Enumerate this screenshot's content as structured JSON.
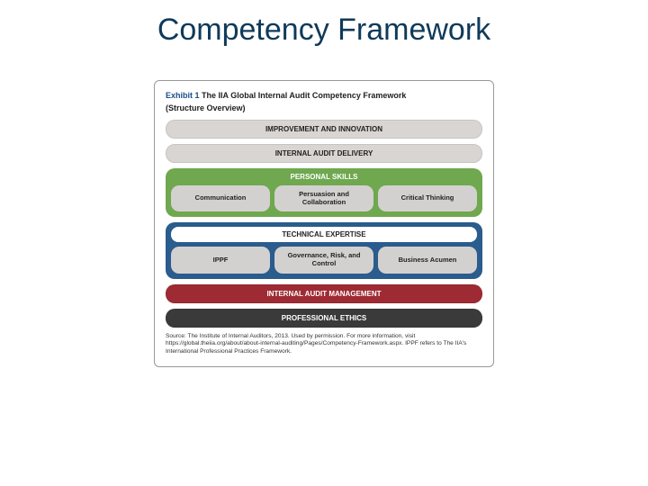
{
  "title": {
    "text": "Competency Framework",
    "color": "#0f3a5a"
  },
  "exhibit": {
    "label": "Exhibit 1",
    "heading": "The IIA Global Internal Audit Competency Framework",
    "sub": "(Structure Overview)"
  },
  "colors": {
    "gray_pill": "#d8d5d2",
    "gray_sub": "#d3d1cf",
    "green_group": "#6fa84f",
    "green_title": "#ffffff",
    "blue_group": "#2a5c8d",
    "blue_title_box": "#ffffff",
    "red_pill": "#9e2b34",
    "red_text": "#ffffff",
    "dark_pill": "#3b3a3a",
    "dark_text": "#ffffff"
  },
  "rows": {
    "r1": "IMPROVEMENT AND INNOVATION",
    "r2": "INTERNAL AUDIT DELIVERY",
    "green": {
      "title": "PERSONAL SKILLS",
      "items": [
        "Communication",
        "Persuasion and Collaboration",
        "Critical Thinking"
      ]
    },
    "blue": {
      "title": "TECHNICAL EXPERTISE",
      "items": [
        "IPPF",
        "Governance, Risk, and Control",
        "Business Acumen"
      ]
    },
    "r5": "INTERNAL AUDIT MANAGEMENT",
    "r6": "PROFESSIONAL ETHICS"
  },
  "source": "Source: The Institute of Internal Auditors, 2013. Used by permission. For more information, visit https://global.theiia.org/about/about-internal-auditing/Pages/Competency-Framework.aspx. IPPF refers to The IIA's International Professional Practices Framework."
}
